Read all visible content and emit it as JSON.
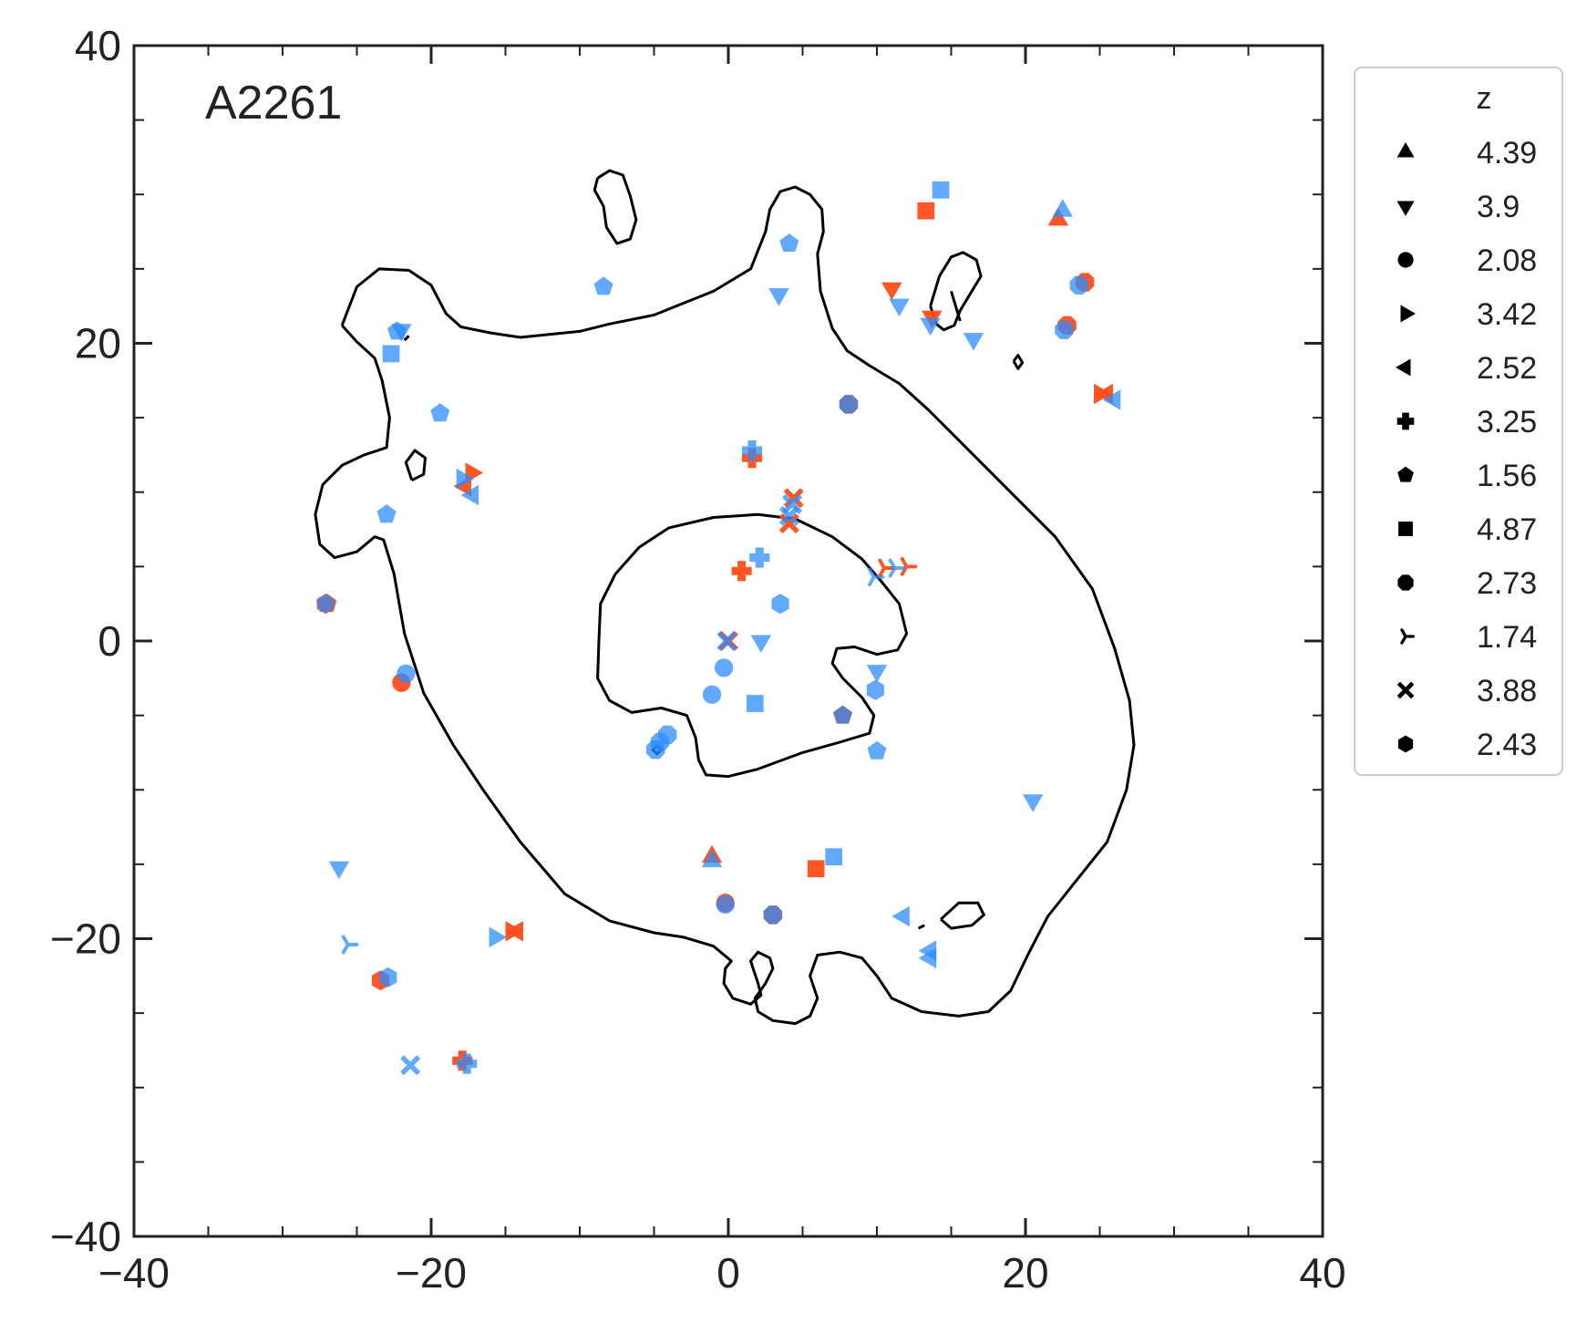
{
  "chart_data": {
    "type": "scatter",
    "panel_label": "A2261",
    "xlim": [
      -40,
      40
    ],
    "ylim": [
      -40,
      40
    ],
    "x_ticks": [
      -40,
      -20,
      0,
      20,
      40
    ],
    "y_ticks": [
      -40,
      -20,
      0,
      20,
      40
    ],
    "x_tick_labels": [
      "−40",
      "−20",
      "0",
      "20",
      "40"
    ],
    "y_tick_labels": [
      "−40",
      "−20",
      "0",
      "20",
      "40"
    ],
    "minor_tick_step": 5,
    "grid": false,
    "legend": {
      "title": "z",
      "placement": "outside-right",
      "entries": [
        {
          "label": "4.39",
          "marker": "triangle-up"
        },
        {
          "label": "3.9",
          "marker": "triangle-down"
        },
        {
          "label": "2.08",
          "marker": "circle"
        },
        {
          "label": "3.42",
          "marker": "triangle-right"
        },
        {
          "label": "2.52",
          "marker": "triangle-left"
        },
        {
          "label": "3.25",
          "marker": "plus"
        },
        {
          "label": "1.56",
          "marker": "pentagon"
        },
        {
          "label": "4.87",
          "marker": "square"
        },
        {
          "label": "2.73",
          "marker": "octagon"
        },
        {
          "label": "1.74",
          "marker": "tri"
        },
        {
          "label": "3.88",
          "marker": "x"
        },
        {
          "label": "2.43",
          "marker": "hexagon"
        }
      ]
    },
    "colors": {
      "observed": "#ff4d1a",
      "model": "#2b8cff",
      "critical_curve": "#000000"
    },
    "series": [
      {
        "marker": "triangle-up",
        "observed": [
          [
            22.2,
            28.3
          ],
          [
            -1.1,
            -14.5
          ]
        ],
        "predicted": [
          [
            22.5,
            28.9
          ],
          [
            -1.1,
            -14.8
          ]
        ]
      },
      {
        "marker": "triangle-down",
        "observed": [
          [
            11.0,
            23.7
          ],
          [
            13.7,
            21.8
          ]
        ],
        "predicted": [
          [
            3.4,
            23.3
          ],
          [
            11.5,
            22.6
          ],
          [
            13.6,
            21.3
          ],
          [
            16.5,
            20.3
          ],
          [
            -22.0,
            20.9
          ],
          [
            20.5,
            -10.7
          ],
          [
            -26.2,
            -15.2
          ],
          [
            2.2,
            0.0
          ],
          [
            10.0,
            -2.0
          ]
        ]
      },
      {
        "marker": "circle",
        "observed": [
          [
            -22.0,
            -2.8
          ],
          [
            -0.2,
            -17.6
          ]
        ],
        "predicted": [
          [
            -21.7,
            -2.2
          ],
          [
            -0.3,
            -1.8
          ],
          [
            -1.1,
            -3.6
          ],
          [
            -0.2,
            -17.7
          ]
        ]
      },
      {
        "marker": "triangle-right",
        "observed": [
          [
            -17.3,
            11.3
          ],
          [
            25.0,
            16.6
          ],
          [
            -14.6,
            -19.5
          ]
        ],
        "predicted": [
          [
            -17.9,
            10.9
          ],
          [
            -15.7,
            -19.9
          ]
        ]
      },
      {
        "marker": "triangle-left",
        "observed": [
          [
            -17.7,
            10.4
          ],
          [
            25.5,
            16.6
          ],
          [
            -14.2,
            -19.5
          ]
        ],
        "predicted": [
          [
            -17.2,
            9.8
          ],
          [
            26.0,
            16.2
          ],
          [
            11.8,
            -18.5
          ],
          [
            13.6,
            -21.3
          ],
          [
            13.6,
            -20.8
          ]
        ]
      },
      {
        "marker": "plus",
        "observed": [
          [
            1.6,
            12.3
          ],
          [
            0.9,
            4.7
          ],
          [
            -17.9,
            -28.2
          ]
        ],
        "predicted": [
          [
            1.6,
            12.8
          ],
          [
            2.1,
            5.6
          ],
          [
            -17.6,
            -28.4
          ]
        ]
      },
      {
        "marker": "pentagon",
        "observed": [
          [
            -27.0,
            2.5
          ],
          [
            7.7,
            -5.0
          ]
        ],
        "predicted": [
          [
            -8.4,
            23.8
          ],
          [
            -22.3,
            20.8
          ],
          [
            -19.4,
            15.3
          ],
          [
            -23.0,
            8.5
          ],
          [
            4.1,
            26.7
          ],
          [
            10.0,
            -7.4
          ],
          [
            -27.1,
            2.5
          ],
          [
            7.7,
            -5.0
          ]
        ]
      },
      {
        "marker": "square",
        "observed": [
          [
            13.3,
            28.9
          ],
          [
            5.9,
            -15.3
          ]
        ],
        "predicted": [
          [
            14.3,
            30.3
          ],
          [
            -22.7,
            19.3
          ],
          [
            7.1,
            -14.5
          ],
          [
            1.8,
            -4.2
          ]
        ]
      },
      {
        "marker": "octagon",
        "observed": [
          [
            24.0,
            24.1
          ],
          [
            22.8,
            21.2
          ],
          [
            8.1,
            15.9
          ],
          [
            3.0,
            -18.4
          ]
        ],
        "predicted": [
          [
            23.6,
            23.9
          ],
          [
            22.6,
            20.9
          ],
          [
            8.1,
            15.9
          ],
          [
            3.0,
            -18.4
          ],
          [
            -4.1,
            -6.3
          ],
          [
            -4.6,
            -6.8
          ],
          [
            -4.9,
            -7.3
          ]
        ]
      },
      {
        "marker": "tri",
        "observed": [
          [
            10.5,
            4.9
          ],
          [
            12.0,
            5.0
          ]
        ],
        "predicted": [
          [
            11.2,
            4.9
          ],
          [
            9.8,
            4.3
          ],
          [
            -25.6,
            -20.4
          ]
        ]
      },
      {
        "marker": "x",
        "observed": [
          [
            4.1,
            7.9
          ],
          [
            4.4,
            9.6
          ],
          [
            0.0,
            0.0
          ]
        ],
        "predicted": [
          [
            4.3,
            9.2
          ],
          [
            4.1,
            8.4
          ],
          [
            -0.1,
            0.0
          ],
          [
            -21.4,
            -28.5
          ]
        ]
      },
      {
        "marker": "hexagon",
        "observed": [
          [
            -23.4,
            -22.8
          ],
          [
            -27.1,
            2.5
          ]
        ],
        "predicted": [
          [
            -22.9,
            -22.6
          ],
          [
            3.5,
            2.5
          ],
          [
            9.9,
            -3.3
          ]
        ]
      }
    ]
  }
}
